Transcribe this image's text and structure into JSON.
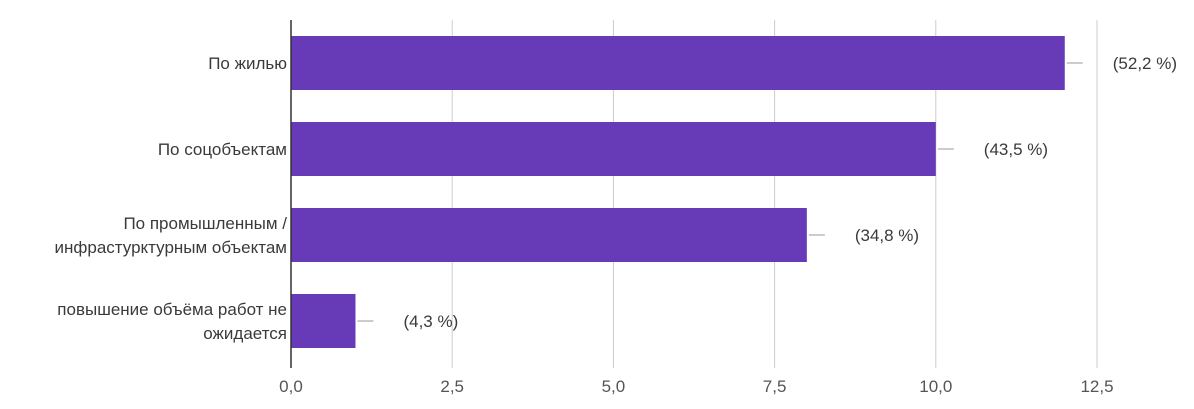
{
  "chart_data": {
    "type": "bar",
    "orientation": "horizontal",
    "categories": [
      [
        "По жилью"
      ],
      [
        "По соцобъектам"
      ],
      [
        "По промышленным /",
        "инфрастурктурным объектам"
      ],
      [
        "повышение объёма работ не",
        "ожидается"
      ]
    ],
    "values": [
      12,
      10,
      8,
      1
    ],
    "value_labels": [
      "(52,2 %)",
      "(43,5 %)",
      "(34,8 %)",
      "(4,3 %)"
    ],
    "x_ticks": [
      "0,0",
      "2,5",
      "5,0",
      "7,5",
      "10,0",
      "12,5"
    ],
    "xlim": [
      0,
      12.5
    ],
    "grid": true,
    "colors": {
      "bar": "#673ab7",
      "grid": "#cccccc",
      "axis": "#333333"
    }
  }
}
